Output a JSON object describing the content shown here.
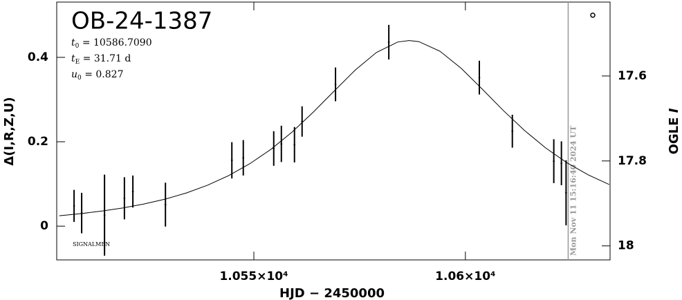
{
  "chart_data": {
    "type": "scatter",
    "title": "OB-24-1387",
    "params": [
      {
        "symbol": "t",
        "sub": "0",
        "text": " = 10586.7090"
      },
      {
        "symbol": "t",
        "sub": "E",
        "text": " = 31.71 d"
      },
      {
        "symbol": "u",
        "sub": "0",
        "text": " = 0.827"
      }
    ],
    "annotation": "SIGNALMEN",
    "x_label": "HJD − 2450000",
    "y_label": "Δ(I,R,Z,U)",
    "y2_label": {
      "text": "OGLE ",
      "italic": "I"
    },
    "xlim": [
      10503.4,
      10634.2
    ],
    "xticks": [
      {
        "value": 10550,
        "label": "1.055×10⁴"
      },
      {
        "value": 10600,
        "label": "1.06×10⁴"
      }
    ],
    "ylim": [
      -0.08,
      0.531
    ],
    "yticks": [
      0,
      0.2,
      0.4
    ],
    "y2lim": [
      18.033,
      17.426
    ],
    "y2ticks": [
      17.6,
      17.8,
      18
    ],
    "time_marker": {
      "x": 10624.3,
      "label": "Mon Nov 11 15:16:40 2024 UT",
      "color": "#999999"
    },
    "series": [
      {
        "color": "#000000",
        "x": [
          10507.5,
          10509.3,
          10514.7,
          10519.4,
          10521.4,
          10529.1,
          10544.8,
          10547.5,
          10554.7,
          10556.5,
          10559.6,
          10561.4,
          10569.3,
          10581.9,
          10603.3,
          10611.1,
          10620.9,
          10622.7,
          10623.8
        ],
        "values": [
          0.048,
          0.031,
          0.026,
          0.066,
          0.082,
          0.051,
          0.156,
          0.162,
          0.184,
          0.195,
          0.193,
          0.248,
          0.336,
          0.436,
          0.352,
          0.225,
          0.154,
          0.149,
          0.079
        ],
        "errors": [
          0.038,
          0.048,
          0.096,
          0.05,
          0.038,
          0.052,
          0.043,
          0.042,
          0.041,
          0.043,
          0.042,
          0.036,
          0.04,
          0.041,
          0.04,
          0.039,
          0.052,
          0.052,
          0.077
        ]
      },
      {
        "color": "#000000",
        "line": true,
        "x": [
          10504,
          10509,
          10514,
          10519,
          10524,
          10529,
          10534,
          10539,
          10544,
          10549,
          10554,
          10559,
          10564,
          10569,
          10574,
          10579,
          10584,
          10586.709,
          10589,
          10594,
          10599,
          10604,
          10609,
          10614,
          10619,
          10624,
          10629,
          10634
        ],
        "values": [
          0.0247,
          0.0296,
          0.0356,
          0.0431,
          0.0525,
          0.064,
          0.0785,
          0.0968,
          0.1196,
          0.1477,
          0.1818,
          0.2227,
          0.2697,
          0.3203,
          0.3702,
          0.4118,
          0.4363,
          0.4399,
          0.4373,
          0.4145,
          0.3741,
          0.3246,
          0.2737,
          0.2265,
          0.1851,
          0.1503,
          0.1217,
          0.0986
        ]
      }
    ]
  }
}
